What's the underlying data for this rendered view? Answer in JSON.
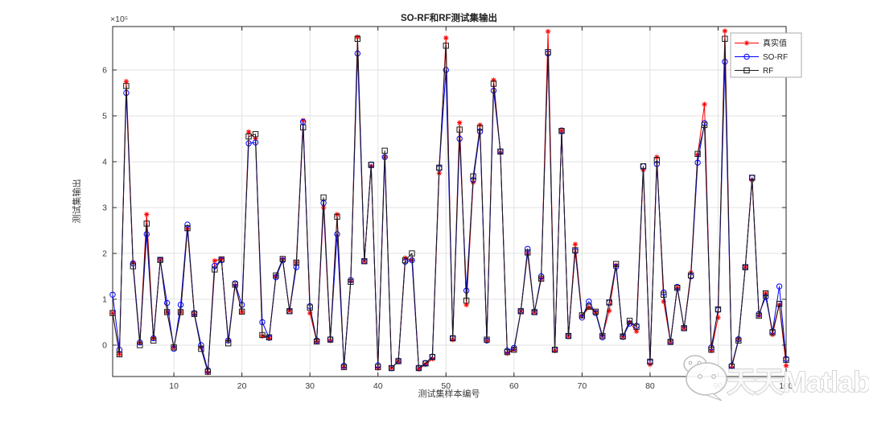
{
  "figure": {
    "title": "SO-RF和RF测试集输出",
    "y_axis_label": "测试集输出",
    "x_axis_label": "测试集样本编号",
    "y_exponent_label": "×10⁵",
    "watermark": {
      "icon": "wechat-icon",
      "text": "天天Matlab"
    }
  },
  "legend": {
    "position": "northeast",
    "entries": [
      {
        "label": "真实值",
        "color": "#ff0000",
        "marker": "asterisk"
      },
      {
        "label": "SO-RF",
        "color": "#0000ff",
        "marker": "circle"
      },
      {
        "label": "RF",
        "color": "#1a1a1a",
        "marker": "square"
      }
    ]
  },
  "chart_data": {
    "type": "line",
    "title": "SO-RF和RF测试集输出",
    "xlabel": "测试集样本编号",
    "ylabel": "测试集输出",
    "y_scale_factor": 100000,
    "xlim": [
      1,
      100
    ],
    "ylim": [
      -0.7,
      6.95
    ],
    "xticks": [
      10,
      20,
      30,
      40,
      50,
      60,
      70,
      80,
      90,
      100
    ],
    "yticks": [
      0,
      1,
      2,
      3,
      4,
      5,
      6
    ],
    "grid": true,
    "x": [
      1,
      2,
      3,
      4,
      5,
      6,
      7,
      8,
      9,
      10,
      11,
      12,
      13,
      14,
      15,
      16,
      17,
      18,
      19,
      20,
      21,
      22,
      23,
      24,
      25,
      26,
      27,
      28,
      29,
      30,
      31,
      32,
      33,
      34,
      35,
      36,
      37,
      38,
      39,
      40,
      41,
      42,
      43,
      44,
      45,
      46,
      47,
      48,
      49,
      50,
      51,
      52,
      53,
      54,
      55,
      56,
      57,
      58,
      59,
      60,
      61,
      62,
      63,
      64,
      65,
      66,
      67,
      68,
      69,
      70,
      71,
      72,
      73,
      74,
      75,
      76,
      77,
      78,
      79,
      80,
      81,
      82,
      83,
      84,
      85,
      86,
      87,
      88,
      89,
      90,
      91,
      92,
      93,
      94,
      95,
      96,
      97,
      98,
      99,
      100
    ],
    "series": [
      {
        "name": "真实值",
        "color": "#ff0000",
        "marker": "asterisk",
        "values": [
          0.7,
          -0.2,
          5.75,
          1.8,
          0.05,
          2.85,
          0.15,
          1.86,
          0.72,
          -0.05,
          0.72,
          2.53,
          0.68,
          -0.05,
          -0.6,
          1.84,
          1.88,
          0.1,
          1.3,
          0.72,
          4.65,
          4.5,
          0.2,
          0.15,
          1.5,
          1.87,
          0.75,
          1.8,
          4.9,
          0.7,
          0.08,
          3.0,
          0.1,
          2.85,
          -0.48,
          1.4,
          6.72,
          1.83,
          3.9,
          -0.5,
          4.1,
          -0.5,
          -0.35,
          1.9,
          1.85,
          -0.52,
          -0.42,
          -0.3,
          3.75,
          6.7,
          0.12,
          4.85,
          0.88,
          3.55,
          4.8,
          0.1,
          5.78,
          4.2,
          -0.18,
          -0.1,
          0.74,
          2.0,
          0.72,
          1.45,
          6.84,
          -0.12,
          4.68,
          0.2,
          2.2,
          0.63,
          0.82,
          0.72,
          0.2,
          0.75,
          1.74,
          0.18,
          0.5,
          0.3,
          3.82,
          -0.42,
          4.1,
          0.95,
          0.07,
          1.25,
          0.37,
          1.58,
          4.15,
          5.25,
          -0.12,
          0.6,
          6.85,
          -0.5,
          0.13,
          1.7,
          3.6,
          0.64,
          1.13,
          0.23,
          0.88,
          -0.45
        ]
      },
      {
        "name": "SO-RF",
        "color": "#0000ff",
        "marker": "circle",
        "values": [
          1.1,
          -0.1,
          5.5,
          1.78,
          0.06,
          2.42,
          0.15,
          1.85,
          0.92,
          -0.08,
          0.88,
          2.63,
          0.7,
          0.0,
          -0.55,
          1.73,
          1.85,
          0.1,
          1.35,
          0.88,
          4.4,
          4.42,
          0.5,
          0.16,
          1.48,
          1.85,
          0.74,
          1.7,
          4.87,
          0.85,
          0.1,
          3.1,
          0.13,
          2.42,
          -0.45,
          1.42,
          6.36,
          1.83,
          3.94,
          -0.44,
          4.1,
          -0.5,
          -0.34,
          1.82,
          1.85,
          -0.5,
          -0.39,
          -0.25,
          3.86,
          6.0,
          0.15,
          4.5,
          1.19,
          3.6,
          4.66,
          0.1,
          5.55,
          4.23,
          -0.12,
          -0.06,
          0.74,
          2.1,
          0.72,
          1.5,
          6.36,
          -0.1,
          4.68,
          0.2,
          2.05,
          0.6,
          0.95,
          0.7,
          0.17,
          0.93,
          1.71,
          0.18,
          0.47,
          0.42,
          3.9,
          -0.37,
          3.95,
          1.15,
          0.08,
          1.27,
          0.37,
          1.5,
          3.98,
          4.84,
          -0.05,
          0.77,
          6.18,
          -0.45,
          0.13,
          1.7,
          3.65,
          0.68,
          1.05,
          0.3,
          1.28,
          -0.3
        ]
      },
      {
        "name": "RF",
        "color": "#1a1a1a",
        "marker": "square",
        "values": [
          0.7,
          -0.2,
          5.65,
          1.72,
          0.0,
          2.65,
          0.1,
          1.86,
          0.72,
          -0.05,
          0.72,
          2.55,
          0.68,
          -0.08,
          -0.58,
          1.65,
          1.87,
          0.04,
          1.32,
          0.73,
          4.55,
          4.6,
          0.22,
          0.17,
          1.52,
          1.88,
          0.74,
          1.8,
          4.75,
          0.82,
          0.08,
          3.22,
          0.12,
          2.8,
          -0.48,
          1.38,
          6.68,
          1.83,
          3.93,
          -0.48,
          4.24,
          -0.5,
          -0.35,
          1.85,
          2.0,
          -0.5,
          -0.4,
          -0.26,
          3.87,
          6.53,
          0.15,
          4.7,
          0.97,
          3.68,
          4.74,
          0.12,
          5.7,
          4.22,
          -0.15,
          -0.1,
          0.74,
          2.02,
          0.72,
          1.45,
          6.39,
          -0.1,
          4.67,
          0.2,
          2.07,
          0.65,
          0.84,
          0.73,
          0.2,
          0.93,
          1.77,
          0.19,
          0.53,
          0.4,
          3.9,
          -0.36,
          4.04,
          1.1,
          0.07,
          1.25,
          0.37,
          1.52,
          4.17,
          4.8,
          -0.1,
          0.78,
          6.68,
          -0.47,
          0.1,
          1.7,
          3.65,
          0.64,
          1.13,
          0.28,
          0.9,
          -0.32
        ]
      }
    ]
  }
}
